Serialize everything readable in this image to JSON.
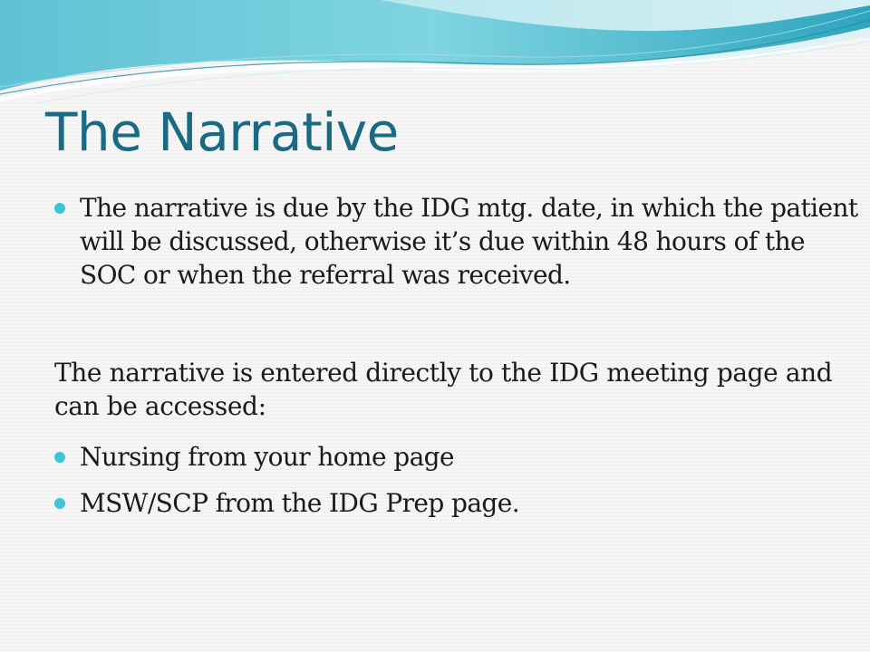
{
  "slide": {
    "title": "The Narrative",
    "bullets_top": [
      {
        "text": "The narrative is due by the IDG mtg. date, in which the patient will be discussed, otherwise it’s due within 48 hours of the SOC or when the referral was received."
      }
    ],
    "paragraph": "The narrative is entered directly to the IDG meeting page and can be accessed:",
    "bullets_bottom": [
      {
        "text": "Nursing from your home page"
      },
      {
        "text": "MSW/SCP from the IDG Prep page."
      }
    ]
  },
  "colors": {
    "title": "#1a6a84",
    "bullet": "#3ec3da",
    "wave_dark": "#2aa7c0",
    "wave_mid": "#5dcbdb",
    "wave_light": "#a8e3ea",
    "background": "#f6f6f6"
  },
  "icons": {
    "bullet": "filled-circle-bullet"
  }
}
